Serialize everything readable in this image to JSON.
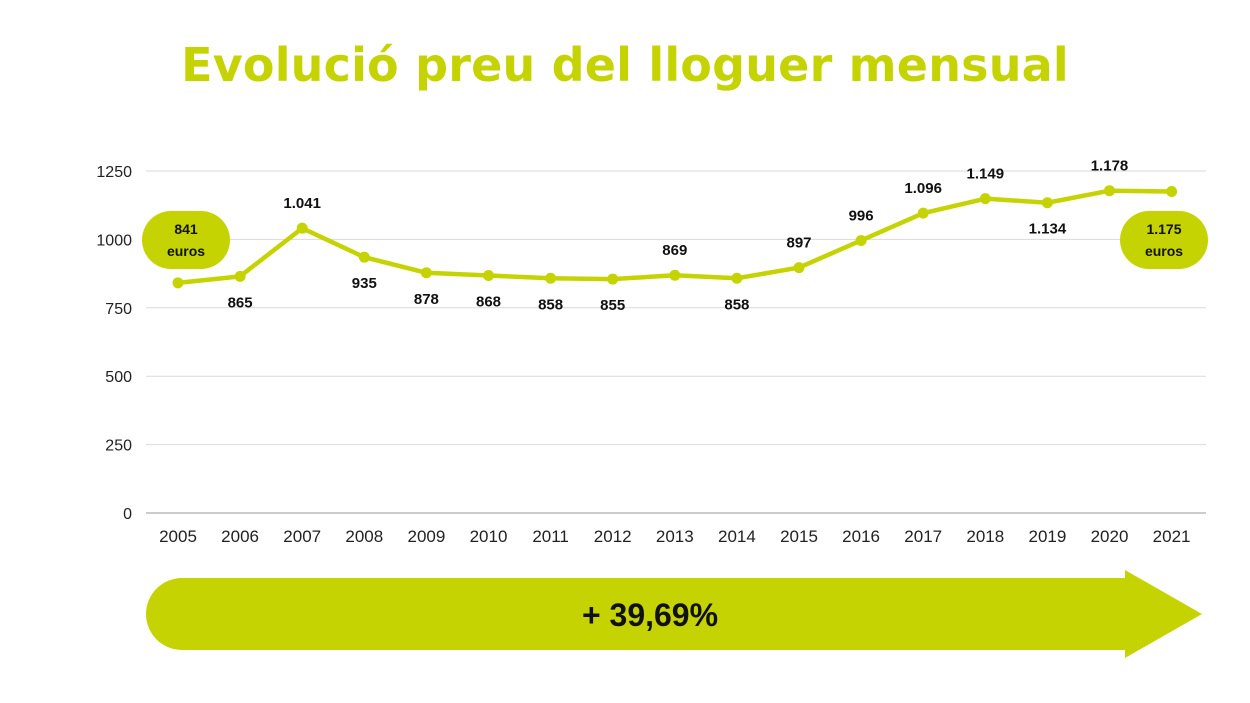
{
  "title": "Evolució preu del lloguer mensual",
  "colors": {
    "accent": "#c6d303",
    "grid": "#d9d9d9",
    "text": "#111111"
  },
  "chart_data": {
    "type": "line",
    "title": "Evolució preu del lloguer mensual",
    "xlabel": "",
    "ylabel": "",
    "ylim": [
      0,
      1250
    ],
    "yticks": [
      0,
      250,
      500,
      750,
      1000,
      1250
    ],
    "grid": true,
    "categories": [
      "2005",
      "2006",
      "2007",
      "2008",
      "2009",
      "2010",
      "2011",
      "2012",
      "2013",
      "2014",
      "2015",
      "2016",
      "2017",
      "2018",
      "2019",
      "2020",
      "2021"
    ],
    "series": [
      {
        "values": [
          841,
          865,
          1041,
          935,
          878,
          868,
          858,
          855,
          869,
          858,
          897,
          996,
          1096,
          1149,
          1134,
          1178,
          1175
        ],
        "labels": [
          "841",
          "865",
          "1.041",
          "935",
          "878",
          "868",
          "858",
          "855",
          "869",
          "858",
          "897",
          "996",
          "1.096",
          "1.149",
          "1.134",
          "1.178",
          "1.175"
        ],
        "label_position": [
          "pill",
          "below",
          "above",
          "below",
          "below",
          "below",
          "below",
          "below",
          "above",
          "below",
          "above",
          "above",
          "above",
          "above",
          "below",
          "above",
          "pill"
        ]
      }
    ],
    "pills": [
      {
        "index": 0,
        "lines": [
          "841",
          "euros"
        ]
      },
      {
        "index": 16,
        "lines": [
          "1.175",
          "euros"
        ]
      }
    ]
  },
  "banner": {
    "text": "+ 39,69%"
  }
}
